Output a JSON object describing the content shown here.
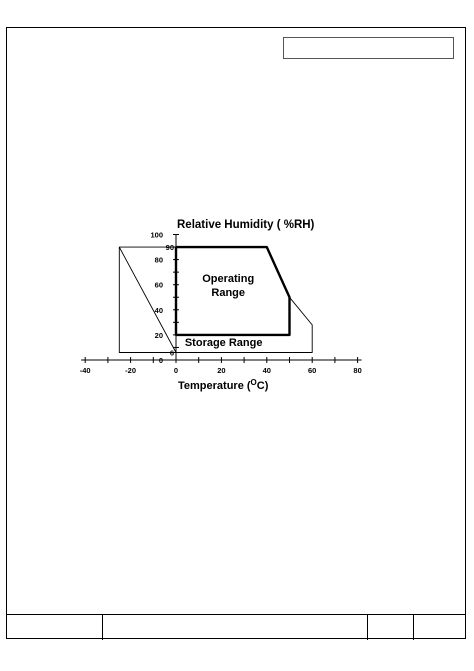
{
  "chart_data": {
    "type": "area",
    "title": "Relative Humidity ( %RH)",
    "xlabel": "Temperature (",
    "xlabel_sup": "O",
    "xlabel_suffix": "C)",
    "xlim": [
      -40,
      80
    ],
    "ylim": [
      0,
      100
    ],
    "x_ticks": [
      -40,
      -20,
      0,
      20,
      40,
      60,
      80
    ],
    "x_tick_labels": [
      "-40",
      "-20",
      "0",
      "20",
      "40",
      "60",
      "80"
    ],
    "y_ticks": [
      0,
      20,
      40,
      60,
      80,
      100
    ],
    "y_tick_labels": [
      "0",
      "20",
      "40",
      "60",
      "80",
      "100"
    ],
    "extra_y_labels": [
      {
        "value": 90,
        "text": "90"
      },
      {
        "value": 6,
        "text": "6"
      }
    ],
    "series": [
      {
        "name": "Operating Range",
        "style": "bold",
        "points": [
          [
            0,
            90
          ],
          [
            40,
            90
          ],
          [
            45,
            70
          ],
          [
            50,
            50
          ],
          [
            50,
            20
          ],
          [
            0,
            20
          ],
          [
            0,
            90
          ]
        ]
      },
      {
        "name": "Storage Range",
        "style": "thin",
        "points": [
          [
            -25,
            90
          ],
          [
            0,
            90
          ],
          [
            0,
            6
          ],
          [
            -25,
            6
          ],
          [
            -25,
            90
          ],
          [
            0,
            6
          ],
          [
            60,
            6
          ],
          [
            60,
            28
          ],
          [
            50,
            50
          ]
        ]
      }
    ],
    "annotations": [
      {
        "text": "Operating",
        "x": 23,
        "y": 62
      },
      {
        "text": "Range",
        "x": 23,
        "y": 51
      },
      {
        "text": "Storage Range",
        "x": 21,
        "y": 11
      }
    ],
    "grid": false,
    "legend": "none"
  }
}
